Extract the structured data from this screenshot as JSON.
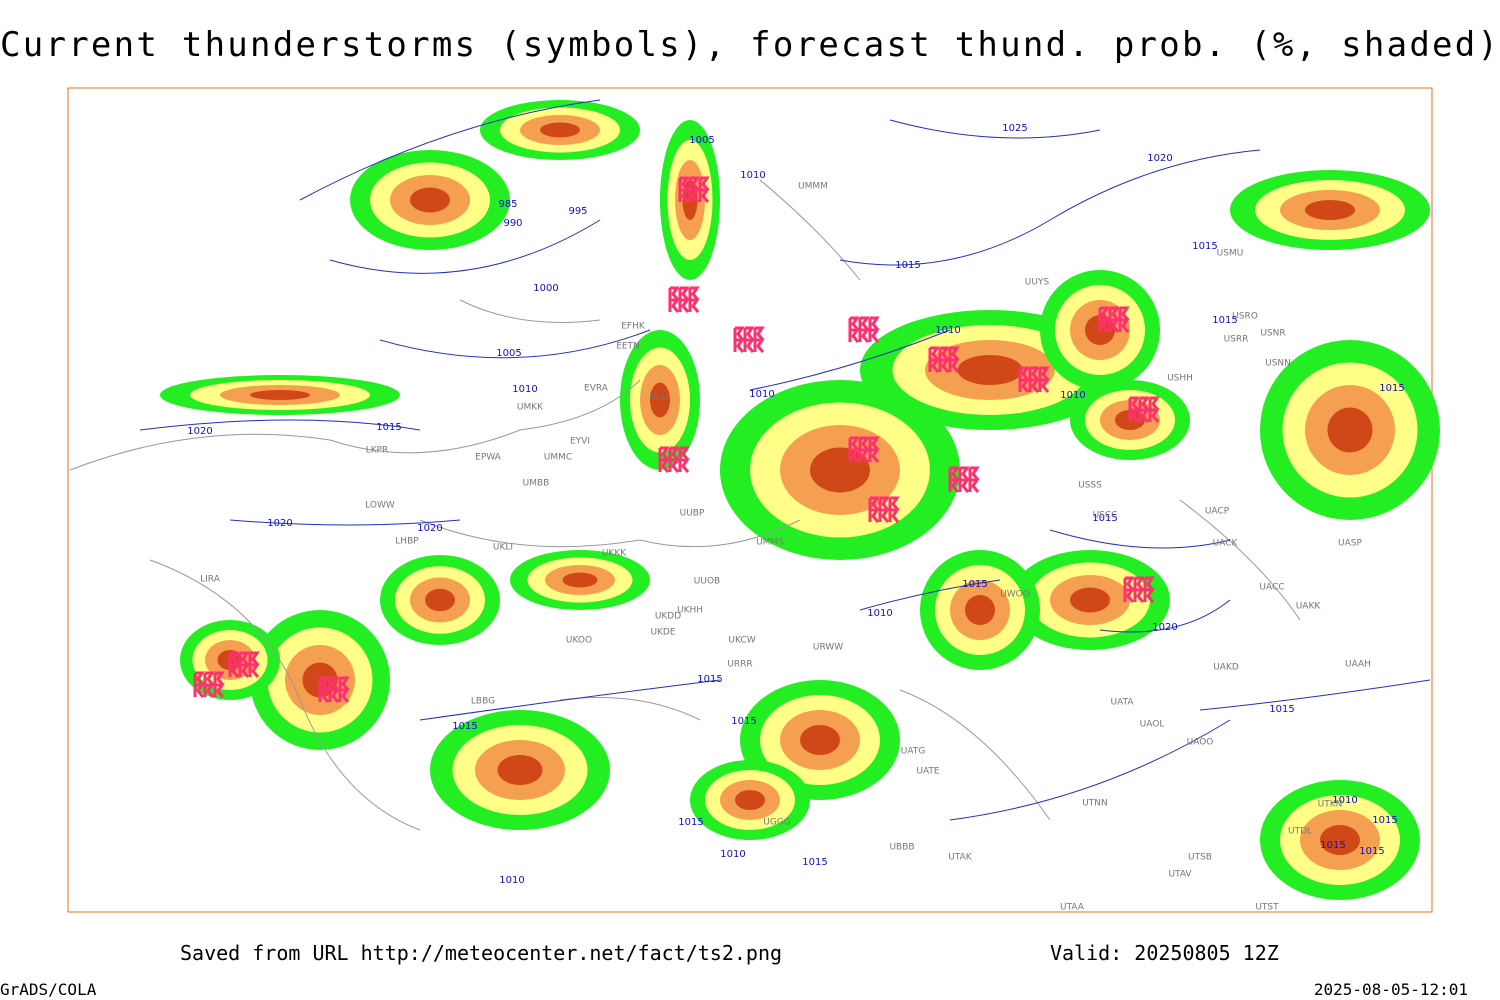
{
  "title": "Current thunderstorms (symbols), forecast thund. prob. (%, shaded)",
  "footer": {
    "saved": "Saved from URL http://meteocenter.net/fact/ts2.png",
    "valid": "Valid: 20250805 12Z",
    "software": "GrADS/COLA",
    "timestamp": "2025-08-05-12:01"
  },
  "isobar_labels": [
    "1025",
    "1020",
    "1015",
    "1005",
    "1010",
    "985",
    "995",
    "990",
    "1000",
    "1015",
    "1005",
    "1010",
    "1015",
    "1020",
    "1010",
    "1010",
    "1010",
    "1015",
    "1015",
    "1020",
    "1020",
    "1015",
    "1015",
    "1010",
    "1020",
    "1015",
    "1015",
    "1015",
    "1015",
    "1015",
    "1010",
    "1015",
    "1010",
    "1010",
    "1015",
    "1015",
    "1015"
  ],
  "station_labels": [
    "UUYS",
    "USMU",
    "USRO",
    "USRR",
    "USNR",
    "USNN",
    "USHH",
    "USSS",
    "USCC",
    "UACP",
    "UACK",
    "UASP",
    "UACC",
    "UAKK",
    "UAAH",
    "UAKD",
    "UATA",
    "UAOL",
    "UAOO",
    "UATE",
    "UATG",
    "UTNN",
    "UTAK",
    "UTAA",
    "UTSB",
    "UTAV",
    "UTST",
    "UTDL",
    "UTKN",
    "EPWA",
    "UMMC",
    "UMBB",
    "LOWW",
    "LKPR",
    "LHBP",
    "UKLI",
    "UKKK",
    "UUOB",
    "UKHH",
    "UKDD",
    "UKDE",
    "UKOO",
    "UKCW",
    "URRR",
    "URWW",
    "LBBG",
    "UBBB",
    "UGGG",
    "LIRA",
    "EFHK",
    "EETN",
    "EVRA",
    "ULLI",
    "EYVI",
    "UMKK",
    "UMMM",
    "UWOO",
    "UUBP",
    "UMMS"
  ]
}
